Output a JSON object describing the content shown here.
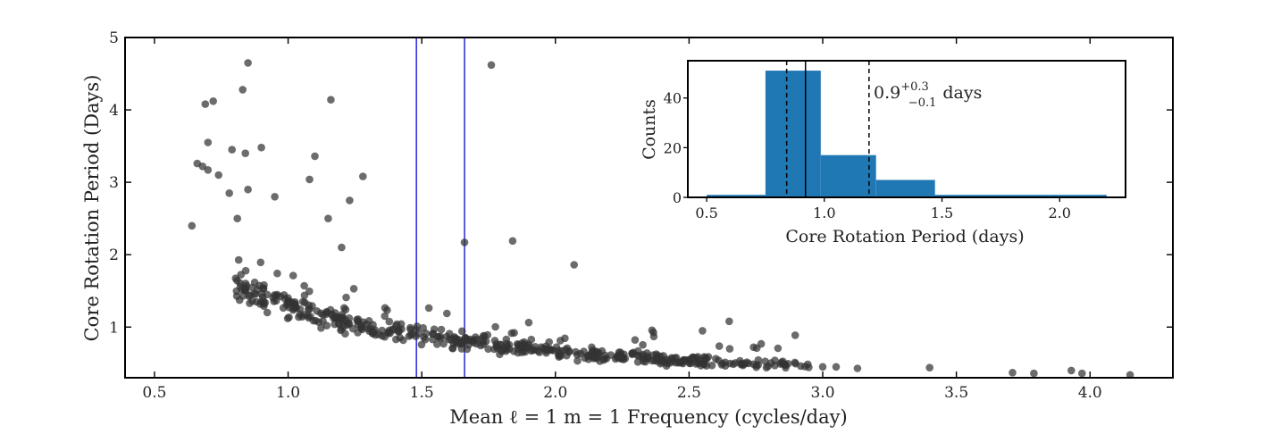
{
  "chart_data": [
    {
      "type": "scatter",
      "xlabel": "Mean ℓ = 1 m = 1 Frequency (cycles/day)",
      "ylabel": "Core Rotation Period (Days)",
      "xlim": [
        0.39,
        4.31
      ],
      "ylim": [
        0.3,
        5.0
      ],
      "xticks": [
        0.5,
        1.0,
        1.5,
        2.0,
        2.5,
        3.0,
        3.5,
        4.0
      ],
      "xtick_labels": [
        "0.5",
        "1.0",
        "1.5",
        "2.0",
        "2.5",
        "3.0",
        "3.5",
        "4.0"
      ],
      "yticks": [
        1,
        2,
        3,
        4,
        5
      ],
      "ytick_labels": [
        "1",
        "2",
        "3",
        "4",
        "5"
      ],
      "vertical_lines": [
        1.48,
        1.66
      ],
      "vline_color": "#3333dd",
      "point_color": "#333333",
      "outliers": [
        [
          0.64,
          2.4
        ],
        [
          0.66,
          3.26
        ],
        [
          0.68,
          3.22
        ],
        [
          0.69,
          4.08
        ],
        [
          0.7,
          3.17
        ],
        [
          0.7,
          3.55
        ],
        [
          0.72,
          4.12
        ],
        [
          0.74,
          3.1
        ],
        [
          0.78,
          2.85
        ],
        [
          0.79,
          3.45
        ],
        [
          0.81,
          2.5
        ],
        [
          0.83,
          4.28
        ],
        [
          0.84,
          3.4
        ],
        [
          0.85,
          4.65
        ],
        [
          0.85,
          2.9
        ],
        [
          0.9,
          3.48
        ],
        [
          0.95,
          2.8
        ],
        [
          1.08,
          3.04
        ],
        [
          1.1,
          3.36
        ],
        [
          1.15,
          2.5
        ],
        [
          1.16,
          4.14
        ],
        [
          1.2,
          2.1
        ],
        [
          1.23,
          2.75
        ],
        [
          1.28,
          3.08
        ],
        [
          1.66,
          2.17
        ],
        [
          1.84,
          2.19
        ],
        [
          1.76,
          4.62
        ],
        [
          2.07,
          1.86
        ],
        [
          2.65,
          1.08
        ],
        [
          3.0,
          0.45
        ],
        [
          3.05,
          0.45
        ],
        [
          3.13,
          0.43
        ],
        [
          3.4,
          0.44
        ],
        [
          3.71,
          0.37
        ],
        [
          3.79,
          0.36
        ],
        [
          3.93,
          0.4
        ],
        [
          3.97,
          0.36
        ],
        [
          4.15,
          0.34
        ]
      ],
      "point_count": 547
    },
    {
      "type": "bar",
      "xlabel": "Core Rotation Period (days)",
      "ylabel": "Counts",
      "xlim": [
        0.42,
        2.28
      ],
      "ylim": [
        0,
        55
      ],
      "xticks": [
        0.5,
        1.0,
        1.5,
        2.0
      ],
      "xtick_labels": [
        "0.5",
        "1.0",
        "1.5",
        "2.0"
      ],
      "yticks": [
        0,
        20,
        40
      ],
      "ytick_labels": [
        "0",
        "20",
        "40"
      ],
      "bins": [
        {
          "start": 0.5,
          "end": 0.75,
          "count": 1
        },
        {
          "start": 0.75,
          "end": 0.985,
          "count": 51
        },
        {
          "start": 0.985,
          "end": 1.22,
          "count": 17
        },
        {
          "start": 1.22,
          "end": 1.47,
          "count": 7
        },
        {
          "start": 1.47,
          "end": 1.72,
          "count": 1
        },
        {
          "start": 1.72,
          "end": 1.96,
          "count": 1
        },
        {
          "start": 1.96,
          "end": 2.2,
          "count": 1
        }
      ],
      "bar_color": "#1f77b4",
      "median": 0.92,
      "lower_bound": 0.84,
      "upper_bound": 1.19,
      "annotation": {
        "value": "0.9",
        "plus": "+0.3",
        "minus": "−0.1",
        "unit": "days"
      }
    }
  ]
}
